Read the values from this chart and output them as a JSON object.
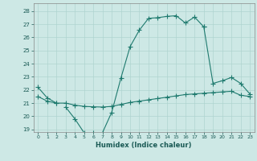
{
  "xlabel": "Humidex (Indice chaleur)",
  "background_color": "#cde8e5",
  "grid_color": "#afd4d0",
  "line_color": "#1e7a6e",
  "xlim": [
    -0.5,
    23.5
  ],
  "ylim": [
    18.8,
    28.6
  ],
  "yticks": [
    19,
    20,
    21,
    22,
    23,
    24,
    25,
    26,
    27,
    28
  ],
  "xticks": [
    0,
    1,
    2,
    3,
    4,
    5,
    6,
    7,
    8,
    9,
    10,
    11,
    12,
    13,
    14,
    15,
    16,
    17,
    18,
    19,
    20,
    21,
    22,
    23
  ],
  "line1_x": [
    0,
    1,
    2
  ],
  "line1_y": [
    22.2,
    21.4,
    21.0
  ],
  "line2_x": [
    3,
    4,
    5,
    6,
    7,
    8,
    9,
    10,
    11,
    12,
    13,
    14,
    15,
    16,
    17,
    18
  ],
  "line2_y": [
    20.7,
    19.8,
    18.75,
    18.75,
    18.75,
    20.3,
    22.9,
    25.3,
    26.55,
    27.45,
    27.5,
    27.6,
    27.65,
    27.1,
    27.55,
    26.8
  ],
  "line3_x": [
    0,
    1,
    2,
    3,
    4,
    5,
    6,
    7,
    8,
    9,
    10,
    11,
    12,
    13,
    14,
    15,
    16,
    17,
    18,
    19,
    20,
    21,
    22,
    23
  ],
  "line3_y": [
    21.5,
    21.15,
    21.0,
    21.0,
    20.85,
    20.75,
    20.72,
    20.7,
    20.75,
    20.9,
    21.05,
    21.15,
    21.25,
    21.35,
    21.45,
    21.55,
    21.65,
    21.7,
    21.75,
    21.8,
    21.85,
    21.9,
    21.6,
    21.5
  ],
  "line4_x": [
    18,
    19,
    20,
    21,
    22,
    23
  ],
  "line4_y": [
    26.8,
    22.5,
    22.7,
    22.95,
    22.5,
    21.7
  ]
}
